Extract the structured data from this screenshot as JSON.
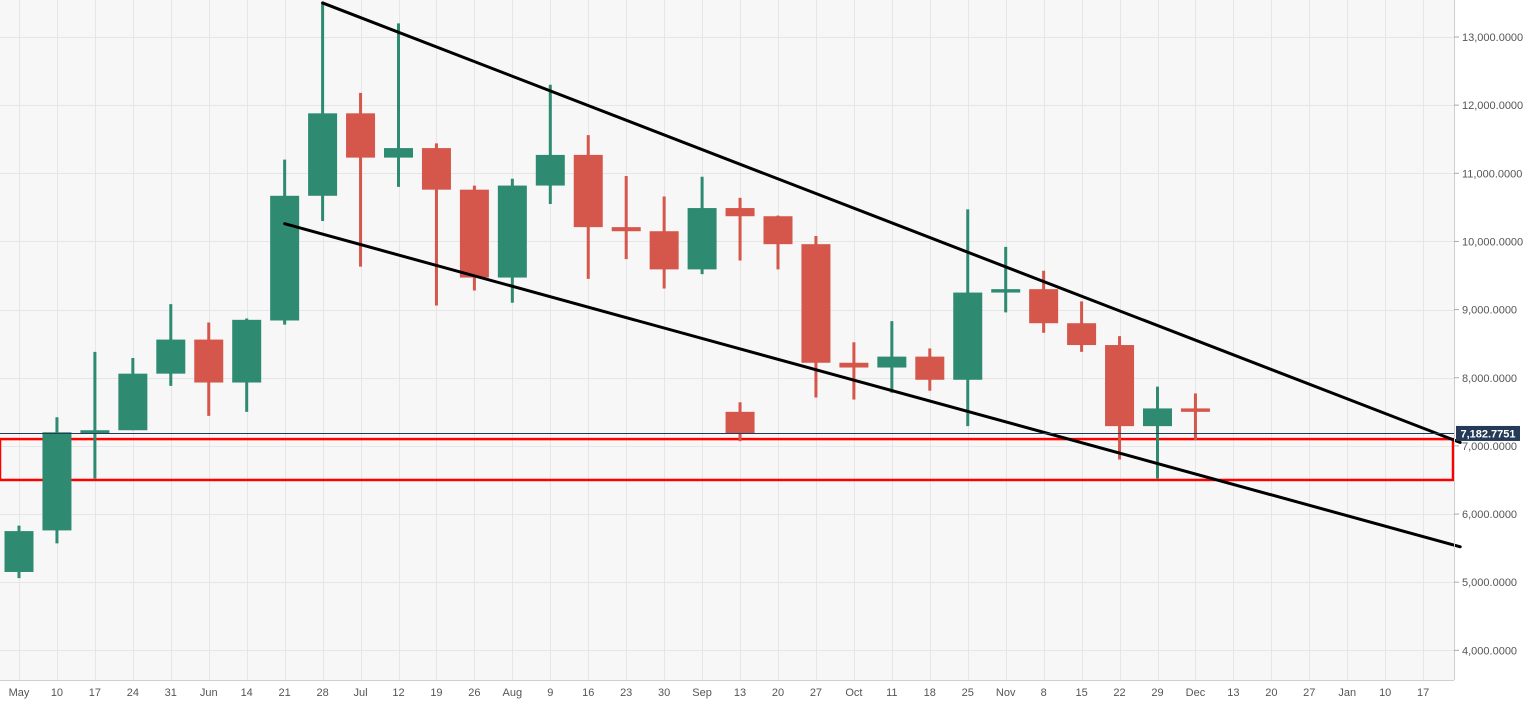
{
  "chart_data": {
    "type": "candlestick",
    "timeframe": "weekly",
    "x_tick_labels": [
      "May",
      "10",
      "17",
      "24",
      "31",
      "Jun",
      "14",
      "21",
      "28",
      "Jul",
      "12",
      "19",
      "26",
      "Aug",
      "9",
      "16",
      "23",
      "30",
      "Sep",
      "13",
      "20",
      "27",
      "Oct",
      "11",
      "18",
      "25",
      "Nov",
      "8",
      "15",
      "22",
      "29",
      "Dec",
      "13",
      "20",
      "27",
      "Jan",
      "10",
      "17"
    ],
    "y_tick_labels": [
      "13,000.0000",
      "12,000.0000",
      "11,000.0000",
      "10,000.0000",
      "9,000.0000",
      "8,000.0000",
      "7,000.0000",
      "6,000.0000",
      "5,000.0000",
      "4,000.0000"
    ],
    "y_ticks": [
      13000,
      12000,
      11000,
      10000,
      9000,
      8000,
      7000,
      6000,
      5000,
      4000
    ],
    "ylim": [
      3600,
      13550
    ],
    "grid": true,
    "current_price": 7182.7751,
    "current_price_label": "7,182.7751",
    "candles": [
      {
        "x": "May",
        "open": 5150,
        "high": 5830,
        "low": 5060,
        "close": 5750
      },
      {
        "x": "10",
        "open": 5760,
        "high": 7420,
        "low": 5570,
        "close": 7200
      },
      {
        "x": "17",
        "open": 7200,
        "high": 8380,
        "low": 6520,
        "close": 7230
      },
      {
        "x": "24",
        "open": 7230,
        "high": 8290,
        "low": 7230,
        "close": 8060
      },
      {
        "x": "31",
        "open": 8060,
        "high": 9080,
        "low": 7880,
        "close": 8560
      },
      {
        "x": "Jun",
        "open": 8560,
        "high": 8810,
        "low": 7440,
        "close": 7930
      },
      {
        "x": "14",
        "open": 7930,
        "high": 8870,
        "low": 7500,
        "close": 8850
      },
      {
        "x": "21",
        "open": 8840,
        "high": 11200,
        "low": 8780,
        "close": 10670
      },
      {
        "x": "28",
        "open": 10670,
        "high": 13500,
        "low": 10300,
        "close": 11880
      },
      {
        "x": "Jul",
        "open": 11880,
        "high": 12180,
        "low": 9630,
        "close": 11230
      },
      {
        "x": "12",
        "open": 11230,
        "high": 13200,
        "low": 10800,
        "close": 11370
      },
      {
        "x": "19",
        "open": 11370,
        "high": 11440,
        "low": 9060,
        "close": 10760
      },
      {
        "x": "26",
        "open": 10760,
        "high": 10820,
        "low": 9280,
        "close": 9470
      },
      {
        "x": "Aug",
        "open": 9470,
        "high": 10920,
        "low": 9100,
        "close": 10820
      },
      {
        "x": "9",
        "open": 10820,
        "high": 12300,
        "low": 10550,
        "close": 11270
      },
      {
        "x": "16",
        "open": 11270,
        "high": 11560,
        "low": 9450,
        "close": 10210
      },
      {
        "x": "23",
        "open": 10210,
        "high": 10960,
        "low": 9740,
        "close": 10150
      },
      {
        "x": "30",
        "open": 10150,
        "high": 10660,
        "low": 9310,
        "close": 9590
      },
      {
        "x": "Sep",
        "open": 9590,
        "high": 10950,
        "low": 9520,
        "close": 10490
      },
      {
        "x": "13",
        "open": 10490,
        "high": 10640,
        "low": 9720,
        "close": 10370
      },
      {
        "x": "20",
        "open": 10370,
        "high": 10380,
        "low": 9590,
        "close": 9960
      },
      {
        "x": "27",
        "open": 9960,
        "high": 10080,
        "low": 7710,
        "close": 8220
      },
      {
        "x": "Oct",
        "open": 8220,
        "high": 8520,
        "low": 7680,
        "close": 8150
      },
      {
        "x": "11",
        "open": 8150,
        "high": 8830,
        "low": 7780,
        "close": 8310
      },
      {
        "x": "18",
        "open": 8310,
        "high": 8430,
        "low": 7810,
        "close": 7970
      },
      {
        "x": "25",
        "open": 7970,
        "high": 10470,
        "low": 7290,
        "close": 9250
      },
      {
        "x": "Nov",
        "open": 9250,
        "high": 9920,
        "low": 8960,
        "close": 9300
      },
      {
        "x": "8",
        "open": 9300,
        "high": 9570,
        "low": 8660,
        "close": 8800
      },
      {
        "x": "15",
        "open": 8800,
        "high": 9120,
        "low": 8380,
        "close": 8480
      },
      {
        "x": "22",
        "open": 8480,
        "high": 8610,
        "low": 6800,
        "close": 7290
      },
      {
        "x": "29",
        "open": 7290,
        "high": 7870,
        "low": 6520,
        "close": 7550
      },
      {
        "x": "Dec",
        "open": 7550,
        "high": 7770,
        "low": 7090,
        "close": 7500
      },
      {
        "x": "13",
        "open": 7500,
        "high": 7640,
        "low": 7070,
        "close": 7180
      }
    ],
    "trendlines": [
      {
        "from": {
          "x": "28",
          "y": 13500
        },
        "to": {
          "x": "Jan",
          "y": 7050
        }
      },
      {
        "from": {
          "x": "21",
          "y": 10260
        },
        "to": {
          "x": "Jan",
          "y": 5520
        }
      }
    ],
    "zone": {
      "low": 6500,
      "high": 7100
    },
    "colors": {
      "bullish": "#2e8b72",
      "bearish": "#d5564a",
      "grid": "#e6e6e6",
      "plot_bg": "#f7f7f7",
      "trendline": "#000000",
      "zone": "#ff0000",
      "price_tag_bg": "#253a56",
      "axis_text": "#555555"
    }
  }
}
